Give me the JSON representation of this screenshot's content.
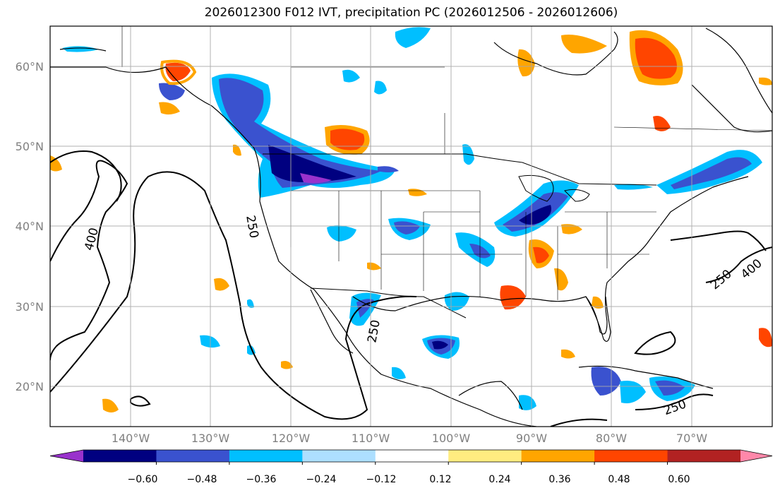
{
  "title": "2026012300 F012 IVT, precipitation PC (2026012506 - 2026012606)",
  "map": {
    "projection": "plate-carree",
    "lon_range": [
      -152,
      -61
    ],
    "lat_range": [
      15,
      65
    ],
    "lat_labels": [
      "60°N",
      "50°N",
      "40°N",
      "30°N",
      "20°N"
    ],
    "lon_labels": [
      "140°W",
      "130°W",
      "120°W",
      "110°W",
      "100°W",
      "90°W",
      "80°W",
      "70°W"
    ],
    "gridlines": true,
    "contour_labels": [
      "400",
      "250",
      "250",
      "250",
      "250",
      "400"
    ]
  },
  "colorbar": {
    "colors": [
      "#9932cc",
      "#000080",
      "#3a52cf",
      "#00bfff",
      "#addfff",
      "#ffffff",
      "#ffec80",
      "#ffa500",
      "#ff4500",
      "#b22222",
      "#ff88aa"
    ],
    "tick_labels": [
      "−0.60",
      "−0.48",
      "−0.36",
      "−0.24",
      "−0.12",
      "0.12",
      "0.24",
      "0.36",
      "0.48",
      "0.60"
    ]
  }
}
